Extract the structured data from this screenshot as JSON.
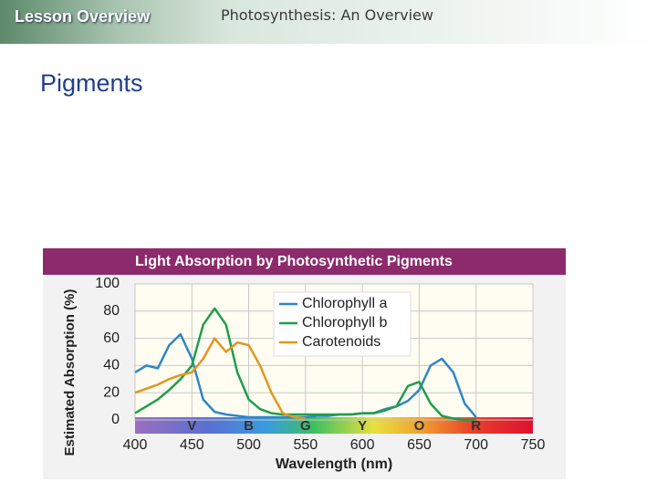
{
  "header": {
    "left": "Lesson Overview",
    "right": "Photosynthesis: An Overview"
  },
  "heading": "Pigments",
  "chart_data": {
    "type": "line",
    "title": "Light Absorption by Photosynthetic Pigments",
    "x_label": "Wavelength (nm)",
    "y_label": "Estimated Absorption (%)",
    "x": [
      400,
      410,
      420,
      430,
      440,
      450,
      460,
      470,
      480,
      490,
      500,
      510,
      520,
      530,
      540,
      550,
      560,
      570,
      580,
      590,
      600,
      610,
      620,
      630,
      640,
      650,
      660,
      670,
      680,
      690,
      700
    ],
    "series": [
      {
        "name": "Chlorophyll a",
        "color": "#2f86c6",
        "values": [
          35,
          40,
          38,
          55,
          63,
          45,
          15,
          6,
          4,
          3,
          2,
          2,
          2,
          2,
          2,
          2,
          3,
          3,
          4,
          4,
          5,
          5,
          8,
          10,
          14,
          22,
          40,
          45,
          35,
          12,
          2
        ]
      },
      {
        "name": "Chlorophyll b",
        "color": "#1f9e4b",
        "values": [
          5,
          10,
          15,
          22,
          30,
          40,
          70,
          82,
          70,
          35,
          15,
          8,
          5,
          4,
          4,
          4,
          4,
          4,
          4,
          4,
          5,
          5,
          7,
          10,
          25,
          28,
          12,
          3,
          1,
          0,
          0
        ]
      },
      {
        "name": "Carotenoids",
        "color": "#e3961e",
        "values": [
          20,
          23,
          26,
          30,
          33,
          35,
          45,
          60,
          50,
          57,
          55,
          40,
          20,
          5,
          2,
          1,
          null,
          null,
          null,
          null,
          null,
          null,
          null,
          null,
          null,
          null,
          null,
          null,
          null,
          null,
          null
        ]
      }
    ],
    "xlim": [
      400,
      750
    ],
    "ylim": [
      0,
      100
    ],
    "xticks": [
      400,
      450,
      500,
      550,
      600,
      650,
      700,
      750
    ],
    "yticks": [
      0,
      20,
      40,
      60,
      80,
      100
    ],
    "grid": true,
    "legend": "top-right",
    "spectrum_labels": [
      "V",
      "B",
      "G",
      "Y",
      "O",
      "R"
    ]
  }
}
